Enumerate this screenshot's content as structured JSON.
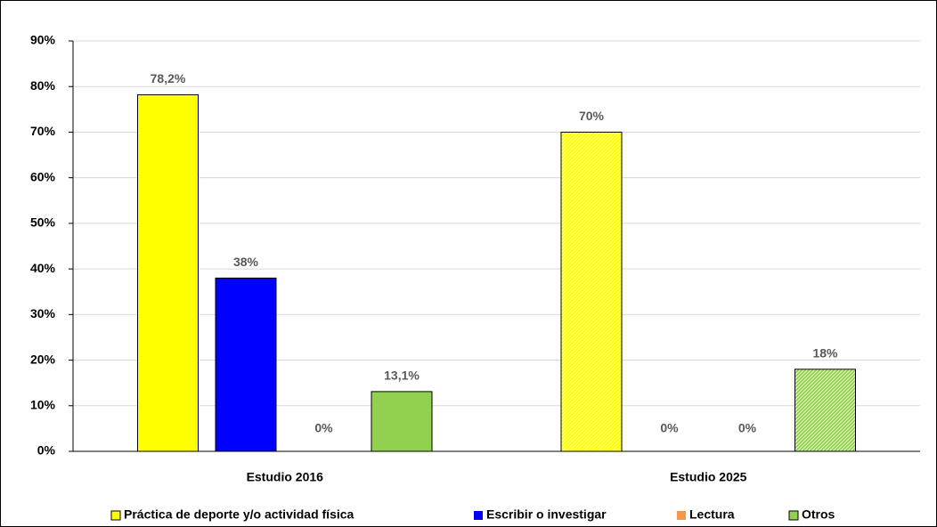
{
  "chart_data": {
    "type": "bar",
    "categories": [
      "Estudio 2016",
      "Estudio 2025"
    ],
    "series": [
      {
        "name": "Práctica de deporte y/o actividad física",
        "color": "#ffff00",
        "values": [
          78.2,
          70
        ],
        "value_labels": [
          "78,2%",
          "70%"
        ]
      },
      {
        "name": "Escribir o investigar",
        "color": "#0000ff",
        "values": [
          38,
          0
        ],
        "value_labels": [
          "38%",
          "0%"
        ]
      },
      {
        "name": "Lectura",
        "color": "#f79646",
        "values": [
          0,
          0
        ],
        "value_labels": [
          "0%",
          "0%"
        ]
      },
      {
        "name": "Otros",
        "color": "#92d050",
        "values": [
          13.1,
          18
        ],
        "value_labels": [
          "13,1%",
          "18%"
        ]
      }
    ],
    "ylim": [
      0,
      90
    ],
    "yticks": [
      {
        "value": 0,
        "label": "0%"
      },
      {
        "value": 10,
        "label": "10%"
      },
      {
        "value": 20,
        "label": "20%"
      },
      {
        "value": 30,
        "label": "30%"
      },
      {
        "value": 40,
        "label": "40%"
      },
      {
        "value": 50,
        "label": "50%"
      },
      {
        "value": 60,
        "label": "60%"
      },
      {
        "value": 70,
        "label": "70%"
      },
      {
        "value": 80,
        "label": "80%"
      },
      {
        "value": 90,
        "label": "90%"
      }
    ],
    "grid": true,
    "legend": "bottom"
  }
}
